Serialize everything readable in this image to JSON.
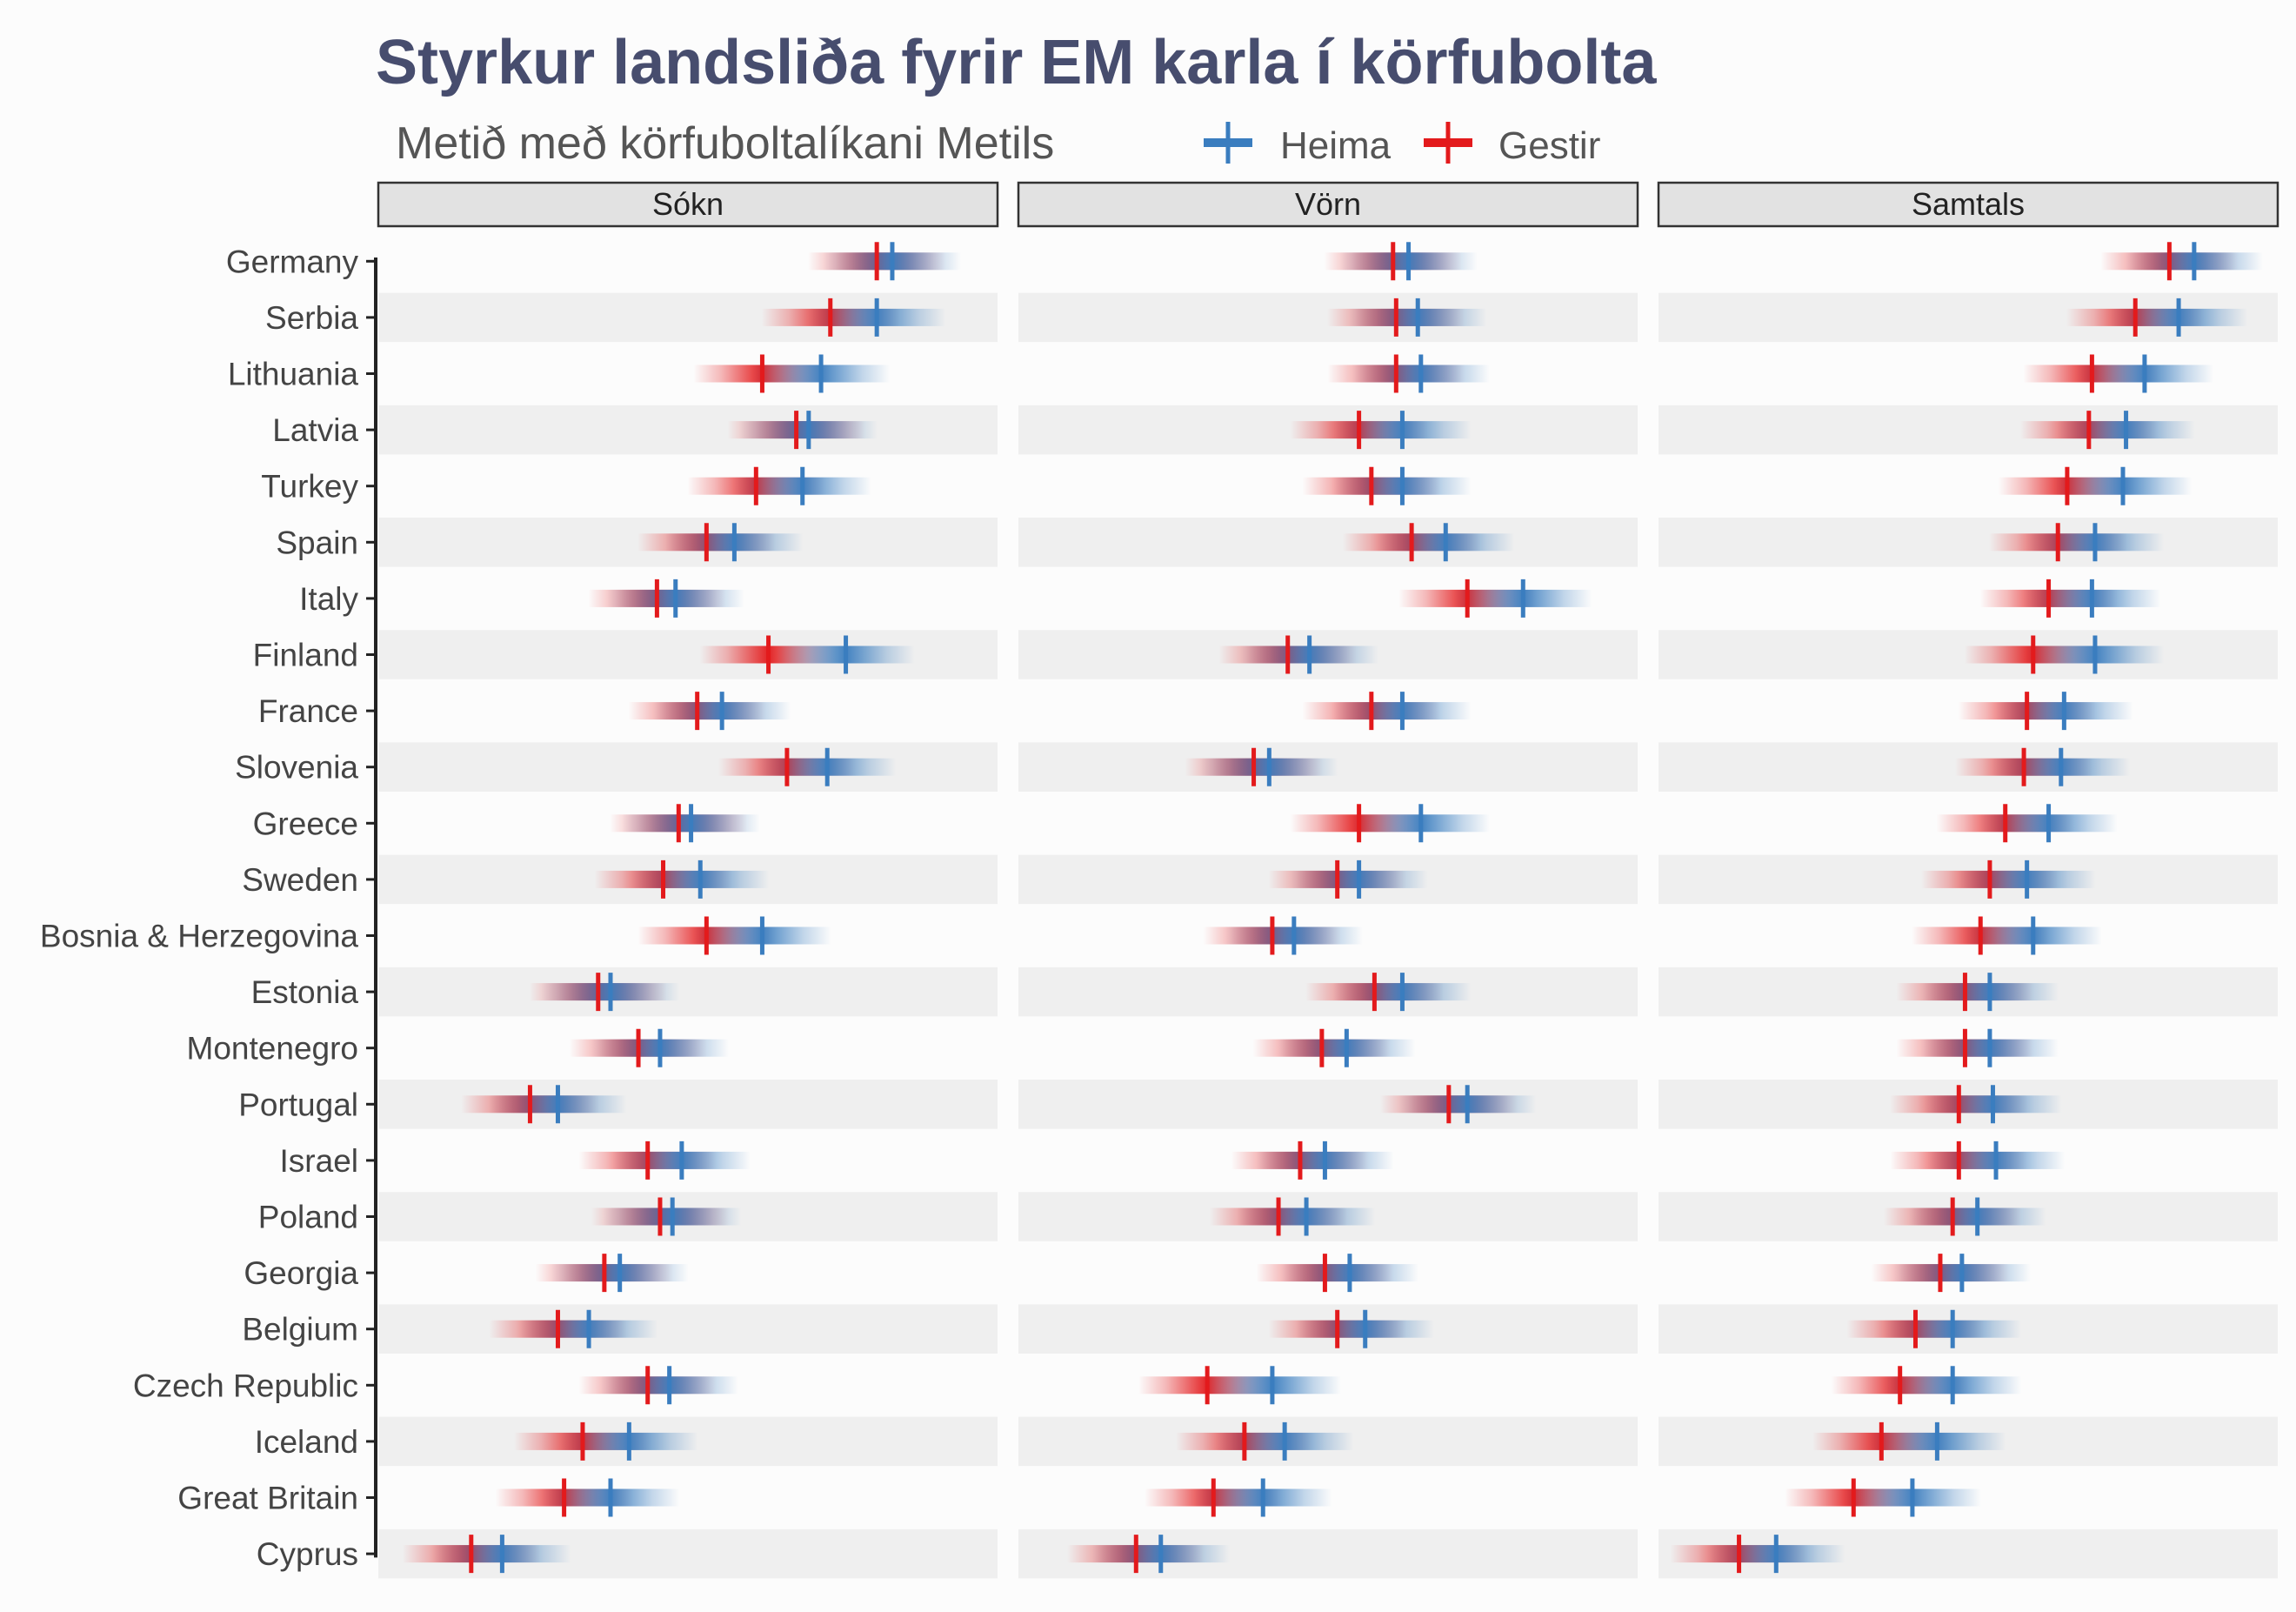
{
  "chart_data": {
    "type": "interval",
    "title": "Styrkur landsliða fyrir EM karla í körfubolta",
    "subtitle": "Metið með körfuboltalíkani Metils",
    "legend": {
      "position": "top",
      "series": [
        {
          "key": "home",
          "name": "Heima",
          "color": "#3a7dbf"
        },
        {
          "key": "away",
          "name": "Gestir",
          "color": "#e31a1c"
        }
      ]
    },
    "panels": [
      {
        "key": "sokn",
        "title": "Sókn",
        "xlim": [
          0,
          100
        ]
      },
      {
        "key": "vorn",
        "title": "Vörn",
        "xlim": [
          0,
          100
        ]
      },
      {
        "key": "samtals",
        "title": "Samtals",
        "xlim": [
          0,
          100
        ]
      }
    ],
    "countries": [
      {
        "name": "Germany",
        "sokn": {
          "home": 83,
          "away": 80.5
        },
        "vorn": {
          "home": 63,
          "away": 60.5
        },
        "samtals": {
          "home": 86.5,
          "away": 82.5
        }
      },
      {
        "name": "Serbia",
        "sokn": {
          "home": 80.5,
          "away": 73
        },
        "vorn": {
          "home": 64.5,
          "away": 61
        },
        "samtals": {
          "home": 84,
          "away": 77
        }
      },
      {
        "name": "Lithuania",
        "sokn": {
          "home": 71.5,
          "away": 62
        },
        "vorn": {
          "home": 65,
          "away": 61
        },
        "samtals": {
          "home": 78.5,
          "away": 70
        }
      },
      {
        "name": "Latvia",
        "sokn": {
          "home": 69.5,
          "away": 67.5
        },
        "vorn": {
          "home": 62,
          "away": 55
        },
        "samtals": {
          "home": 75.5,
          "away": 69.5
        }
      },
      {
        "name": "Turkey",
        "sokn": {
          "home": 68.5,
          "away": 61
        },
        "vorn": {
          "home": 62,
          "away": 57
        },
        "samtals": {
          "home": 75,
          "away": 66
        }
      },
      {
        "name": "Spain",
        "sokn": {
          "home": 57.5,
          "away": 53
        },
        "vorn": {
          "home": 69,
          "away": 63.5
        },
        "samtals": {
          "home": 70.5,
          "away": 64.5
        }
      },
      {
        "name": "Italy",
        "sokn": {
          "home": 48,
          "away": 45
        },
        "vorn": {
          "home": 81.5,
          "away": 72.5
        },
        "samtals": {
          "home": 70,
          "away": 63
        }
      },
      {
        "name": "Finland",
        "sokn": {
          "home": 75.5,
          "away": 63
        },
        "vorn": {
          "home": 47,
          "away": 43.5
        },
        "samtals": {
          "home": 70.5,
          "away": 60.5
        }
      },
      {
        "name": "France",
        "sokn": {
          "home": 55.5,
          "away": 51.5
        },
        "vorn": {
          "home": 62,
          "away": 57
        },
        "samtals": {
          "home": 65.5,
          "away": 59.5
        }
      },
      {
        "name": "Slovenia",
        "sokn": {
          "home": 72.5,
          "away": 66
        },
        "vorn": {
          "home": 40.5,
          "away": 38
        },
        "samtals": {
          "home": 65,
          "away": 59
        }
      },
      {
        "name": "Greece",
        "sokn": {
          "home": 50.5,
          "away": 48.5
        },
        "vorn": {
          "home": 65,
          "away": 55
        },
        "samtals": {
          "home": 63,
          "away": 56
        }
      },
      {
        "name": "Sweden",
        "sokn": {
          "home": 52,
          "away": 46
        },
        "vorn": {
          "home": 55,
          "away": 51.5
        },
        "samtals": {
          "home": 59.5,
          "away": 53.5
        }
      },
      {
        "name": "Bosnia & Herzegovina",
        "sokn": {
          "home": 62,
          "away": 53
        },
        "vorn": {
          "home": 44.5,
          "away": 41
        },
        "samtals": {
          "home": 60.5,
          "away": 52
        }
      },
      {
        "name": "Estonia",
        "sokn": {
          "home": 37.5,
          "away": 35.5
        },
        "vorn": {
          "home": 62,
          "away": 57.5
        },
        "samtals": {
          "home": 53.5,
          "away": 49.5
        }
      },
      {
        "name": "Montenegro",
        "sokn": {
          "home": 45.5,
          "away": 42
        },
        "vorn": {
          "home": 53,
          "away": 49
        },
        "samtals": {
          "home": 53.5,
          "away": 49.5
        }
      },
      {
        "name": "Portugal",
        "sokn": {
          "home": 29,
          "away": 24.5
        },
        "vorn": {
          "home": 72.5,
          "away": 69.5
        },
        "samtals": {
          "home": 54,
          "away": 48.5
        }
      },
      {
        "name": "Israel",
        "sokn": {
          "home": 49,
          "away": 43.5
        },
        "vorn": {
          "home": 49.5,
          "away": 45.5
        },
        "samtals": {
          "home": 54.5,
          "away": 48.5
        }
      },
      {
        "name": "Poland",
        "sokn": {
          "home": 47.5,
          "away": 45.5
        },
        "vorn": {
          "home": 46.5,
          "away": 42
        },
        "samtals": {
          "home": 51.5,
          "away": 47.5
        }
      },
      {
        "name": "Georgia",
        "sokn": {
          "home": 39,
          "away": 36.5
        },
        "vorn": {
          "home": 53.5,
          "away": 49.5
        },
        "samtals": {
          "home": 49,
          "away": 45.5
        }
      },
      {
        "name": "Belgium",
        "sokn": {
          "home": 34,
          "away": 29
        },
        "vorn": {
          "home": 56,
          "away": 51.5
        },
        "samtals": {
          "home": 47.5,
          "away": 41.5
        }
      },
      {
        "name": "Czech Republic",
        "sokn": {
          "home": 47,
          "away": 43.5
        },
        "vorn": {
          "home": 41,
          "away": 30.5
        },
        "samtals": {
          "home": 47.5,
          "away": 39
        }
      },
      {
        "name": "Iceland",
        "sokn": {
          "home": 40.5,
          "away": 33
        },
        "vorn": {
          "home": 43,
          "away": 36.5
        },
        "samtals": {
          "home": 45,
          "away": 36
        }
      },
      {
        "name": "Great Britain",
        "sokn": {
          "home": 37.5,
          "away": 30
        },
        "vorn": {
          "home": 39.5,
          "away": 31.5
        },
        "samtals": {
          "home": 41,
          "away": 31.5
        }
      },
      {
        "name": "Cyprus",
        "sokn": {
          "home": 20,
          "away": 15
        },
        "vorn": {
          "home": 23,
          "away": 19
        },
        "samtals": {
          "home": 19,
          "away": 13
        }
      }
    ]
  }
}
